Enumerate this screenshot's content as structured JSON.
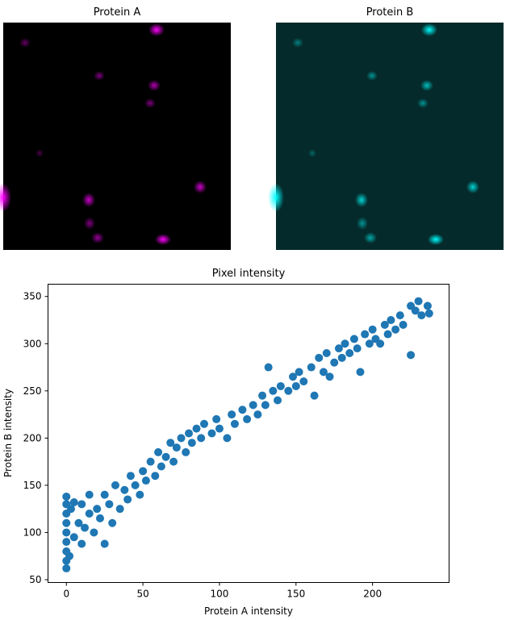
{
  "chart_data": [
    {
      "type": "image",
      "title": "Protein A",
      "color": "#ff00ff"
    },
    {
      "type": "image",
      "title": "Protein B",
      "color": "#00ffff"
    },
    {
      "type": "scatter",
      "title": "Pixel intensity",
      "x_label": "Protein A intensity",
      "y_label": "Protein B intensity",
      "color": "#1f77b4",
      "x": [
        0,
        0,
        0,
        0,
        0,
        0,
        0,
        0,
        0,
        2,
        3,
        5,
        5,
        8,
        10,
        10,
        12,
        15,
        15,
        18,
        20,
        22,
        25,
        25,
        28,
        30,
        32,
        35,
        38,
        40,
        42,
        45,
        48,
        50,
        52,
        55,
        58,
        60,
        62,
        65,
        68,
        70,
        72,
        75,
        78,
        80,
        82,
        85,
        88,
        90,
        95,
        98,
        100,
        105,
        108,
        110,
        115,
        118,
        122,
        125,
        128,
        130,
        132,
        135,
        138,
        140,
        145,
        148,
        150,
        152,
        155,
        160,
        162,
        165,
        168,
        170,
        172,
        175,
        178,
        180,
        182,
        185,
        188,
        190,
        192,
        195,
        198,
        200,
        202,
        205,
        208,
        210,
        212,
        215,
        218,
        220,
        225,
        225,
        228,
        230,
        232,
        236,
        237
      ],
      "y": [
        62,
        70,
        80,
        90,
        100,
        110,
        120,
        130,
        138,
        75,
        125,
        95,
        132,
        110,
        88,
        130,
        105,
        120,
        140,
        100,
        125,
        115,
        88,
        140,
        130,
        110,
        150,
        125,
        145,
        135,
        160,
        150,
        140,
        165,
        155,
        175,
        160,
        185,
        170,
        180,
        195,
        175,
        190,
        200,
        185,
        205,
        195,
        210,
        200,
        215,
        205,
        220,
        210,
        200,
        225,
        215,
        230,
        220,
        235,
        225,
        245,
        235,
        275,
        250,
        240,
        255,
        250,
        265,
        255,
        270,
        260,
        275,
        245,
        285,
        270,
        290,
        265,
        280,
        295,
        285,
        300,
        290,
        305,
        295,
        270,
        310,
        300,
        315,
        305,
        300,
        320,
        310,
        325,
        315,
        330,
        320,
        288,
        340,
        335,
        345,
        330,
        340,
        332
      ],
      "xlim": [
        -12,
        250
      ],
      "ylim": [
        47,
        363
      ],
      "xticks": [
        0,
        50,
        100,
        150,
        200
      ],
      "yticks": [
        50,
        100,
        150,
        200,
        250,
        300,
        350
      ]
    }
  ]
}
